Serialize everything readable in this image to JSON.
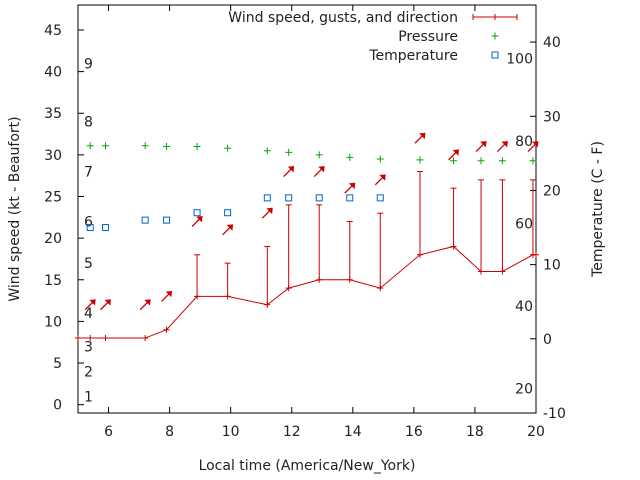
{
  "chart_data": {
    "type": "line",
    "xlabel": "Local time (America/New_York)",
    "ylabel_left": "Wind speed (kt - Beaufort)",
    "ylabel_right": "Temperature (C - F)",
    "xlim": [
      5,
      20
    ],
    "ylim_left": [
      -1,
      48
    ],
    "ylim_right": [
      -10,
      45
    ],
    "x_ticks": [
      "6",
      "8",
      "10",
      "12",
      "14",
      "16",
      "18",
      "20"
    ],
    "y_ticks_left": [
      "0",
      "5",
      "10",
      "15",
      "20",
      "25",
      "30",
      "35",
      "40",
      "45"
    ],
    "y_ticks_right": [
      "-10",
      "0",
      "10",
      "20",
      "30",
      "40"
    ],
    "beaufort_labels": [
      {
        "label": "1",
        "kt": 1
      },
      {
        "label": "2",
        "kt": 4
      },
      {
        "label": "3",
        "kt": 7
      },
      {
        "label": "4",
        "kt": 11
      },
      {
        "label": "5",
        "kt": 17
      },
      {
        "label": "6",
        "kt": 22
      },
      {
        "label": "7",
        "kt": 28
      },
      {
        "label": "8",
        "kt": 34
      },
      {
        "label": "9",
        "kt": 41
      }
    ],
    "fahrenheit_labels": [
      {
        "label": "20",
        "c": -6.67
      },
      {
        "label": "40",
        "c": 4.44
      },
      {
        "label": "60",
        "c": 15.56
      },
      {
        "label": "80",
        "c": 26.67
      },
      {
        "label": "100",
        "c": 37.78
      }
    ],
    "legend_position": "top-right",
    "series": [
      {
        "name": "Wind speed, gusts, and direction",
        "axis": "left",
        "color": "#cc0000",
        "points": [
          {
            "x": 5.0,
            "y": 8
          },
          {
            "x": 5.4,
            "y": 8
          },
          {
            "x": 5.9,
            "y": 8
          },
          {
            "x": 7.2,
            "y": 8
          },
          {
            "x": 7.9,
            "y": 9
          },
          {
            "x": 8.9,
            "y": 13,
            "gust": 18
          },
          {
            "x": 9.9,
            "y": 13,
            "gust": 17
          },
          {
            "x": 11.2,
            "y": 12,
            "gust": 19
          },
          {
            "x": 11.9,
            "y": 14,
            "gust": 24
          },
          {
            "x": 12.9,
            "y": 15,
            "gust": 24
          },
          {
            "x": 13.9,
            "y": 15,
            "gust": 22
          },
          {
            "x": 14.9,
            "y": 14,
            "gust": 23
          },
          {
            "x": 16.2,
            "y": 18,
            "gust": 28
          },
          {
            "x": 17.3,
            "y": 19,
            "gust": 26
          },
          {
            "x": 18.2,
            "y": 16,
            "gust": 27
          },
          {
            "x": 18.9,
            "y": 16,
            "gust": 27
          },
          {
            "x": 19.9,
            "y": 18,
            "gust": 27
          },
          {
            "x": 20.0,
            "y": 18
          }
        ],
        "direction_arrows": [
          {
            "x": 5.4,
            "y": 12,
            "dir": "NE"
          },
          {
            "x": 5.9,
            "y": 12,
            "dir": "NE"
          },
          {
            "x": 7.2,
            "y": 12,
            "dir": "NE"
          },
          {
            "x": 7.9,
            "y": 13,
            "dir": "NE"
          },
          {
            "x": 8.9,
            "y": 22,
            "dir": "NE"
          },
          {
            "x": 9.9,
            "y": 21,
            "dir": "NE"
          },
          {
            "x": 11.2,
            "y": 23,
            "dir": "NE"
          },
          {
            "x": 11.9,
            "y": 28,
            "dir": "NE"
          },
          {
            "x": 12.9,
            "y": 28,
            "dir": "NE"
          },
          {
            "x": 13.9,
            "y": 26,
            "dir": "NE"
          },
          {
            "x": 14.9,
            "y": 27,
            "dir": "NE"
          },
          {
            "x": 16.2,
            "y": 32,
            "dir": "NE"
          },
          {
            "x": 17.3,
            "y": 30,
            "dir": "NE"
          },
          {
            "x": 18.2,
            "y": 31,
            "dir": "NE"
          },
          {
            "x": 18.9,
            "y": 31,
            "dir": "NE"
          },
          {
            "x": 19.9,
            "y": 31,
            "dir": "NE"
          }
        ]
      },
      {
        "name": "Pressure",
        "axis": "left",
        "color": "#00aa00",
        "points": [
          {
            "x": 5.4,
            "y": 31.1
          },
          {
            "x": 5.9,
            "y": 31.1
          },
          {
            "x": 7.2,
            "y": 31.1
          },
          {
            "x": 7.9,
            "y": 31.0
          },
          {
            "x": 8.9,
            "y": 31.0
          },
          {
            "x": 9.9,
            "y": 30.8
          },
          {
            "x": 11.2,
            "y": 30.5
          },
          {
            "x": 11.9,
            "y": 30.3
          },
          {
            "x": 12.9,
            "y": 30.0
          },
          {
            "x": 13.9,
            "y": 29.7
          },
          {
            "x": 14.9,
            "y": 29.5
          },
          {
            "x": 16.2,
            "y": 29.4
          },
          {
            "x": 17.3,
            "y": 29.3
          },
          {
            "x": 18.2,
            "y": 29.3
          },
          {
            "x": 18.9,
            "y": 29.3
          },
          {
            "x": 19.9,
            "y": 29.3
          }
        ]
      },
      {
        "name": "Temperature",
        "axis": "right",
        "color": "#0066cc",
        "points": [
          {
            "x": 5.4,
            "y": 15
          },
          {
            "x": 5.9,
            "y": 15
          },
          {
            "x": 7.2,
            "y": 16
          },
          {
            "x": 7.9,
            "y": 16
          },
          {
            "x": 8.9,
            "y": 17
          },
          {
            "x": 9.9,
            "y": 17
          },
          {
            "x": 11.2,
            "y": 19
          },
          {
            "x": 11.9,
            "y": 19
          },
          {
            "x": 12.9,
            "y": 19
          },
          {
            "x": 13.9,
            "y": 19
          },
          {
            "x": 14.9,
            "y": 19
          }
        ]
      }
    ]
  }
}
